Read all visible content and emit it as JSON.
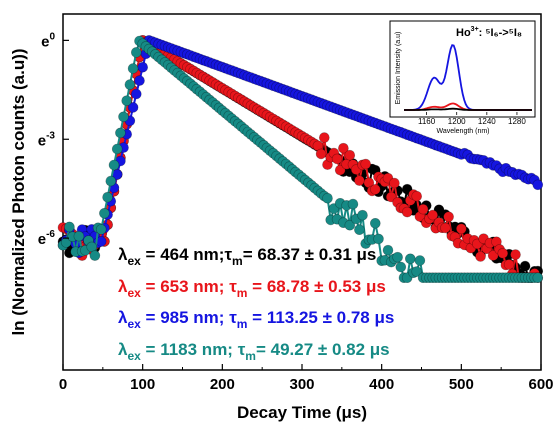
{
  "chart_data": {
    "type": "scatter",
    "xlabel": "Decay Time (μs)",
    "ylabel": "ln (Normalized Photon counts (a.u))",
    "xlim": [
      0,
      600
    ],
    "ylim": [
      -10,
      0.8
    ],
    "x_ticks": [
      "0",
      "100",
      "200",
      "300",
      "400",
      "500",
      "600"
    ],
    "y_ticks": [
      {
        "value": 0,
        "base": "e",
        "exp": "0"
      },
      {
        "value": -3,
        "base": "e",
        "exp": "-3"
      },
      {
        "value": -6,
        "base": "e",
        "exp": "-6"
      }
    ],
    "colors": {
      "black": "#000000",
      "red": "#e8151b",
      "blue": "#1515e0",
      "teal": "#168a85"
    },
    "annotations": [
      {
        "lambda": "λ",
        "lambda_sub": "ex",
        "eq1": " = 464 nm;",
        "tau": "τ",
        "tau_sub": "m",
        "value": "= 68.37 ± 0.31 μs",
        "color": "#000000"
      },
      {
        "lambda": "λ",
        "lambda_sub": "ex",
        "eq1": " = 653 nm; ",
        "tau": "τ",
        "tau_sub": "m",
        "value": " = 68.78 ± 0.53 μs",
        "color": "#e8151b"
      },
      {
        "lambda": "λ",
        "lambda_sub": "ex",
        "eq1": " = 985 nm; ",
        "tau": "τ",
        "tau_sub": "m",
        "value": " = 113.25 ± 0.78 μs",
        "color": "#1515e0"
      },
      {
        "lambda": "λ",
        "lambda_sub": "ex",
        "eq1": " = 1183 nm; ",
        "tau": "τ",
        "tau_sub": "m",
        "value": "= 49.27 ± 0.82 μs",
        "color": "#168a85"
      }
    ],
    "series": [
      {
        "color": "#000000",
        "rise": 52,
        "peak": 100,
        "decay_rate": 0.01462,
        "noise": 0.35,
        "noise_from": 350
      },
      {
        "color": "#e8151b",
        "rise": 52,
        "peak": 100,
        "decay_rate": 0.01454,
        "noise": 0.4,
        "noise_from": 320
      },
      {
        "color": "#1515e0",
        "rise": 48,
        "peak": 108,
        "decay_rate": 0.00883,
        "noise": 0.08,
        "noise_from": 500
      },
      {
        "color": "#168a85",
        "rise": 45,
        "peak": 95,
        "decay_rate": 0.02028,
        "noise": 0.6,
        "noise_from": 330
      }
    ],
    "inset": {
      "title": "Ho",
      "title_sup": "3+",
      "transition": ": ⁵I₆->⁵I₈",
      "xlabel": "Wavelength (nm)",
      "ylabel": "Emission Intensity (a.u)",
      "x_ticks": [
        "1160",
        "1200",
        "1240",
        "1280"
      ],
      "xlim": [
        1130,
        1300
      ],
      "series": [
        {
          "color": "#1515e0",
          "peak": 1195,
          "height": 1.0
        },
        {
          "color": "#e8151b",
          "peak": 1195,
          "height": 0.1
        },
        {
          "color": "#000000",
          "peak": 1195,
          "height": 0.02
        }
      ]
    }
  }
}
